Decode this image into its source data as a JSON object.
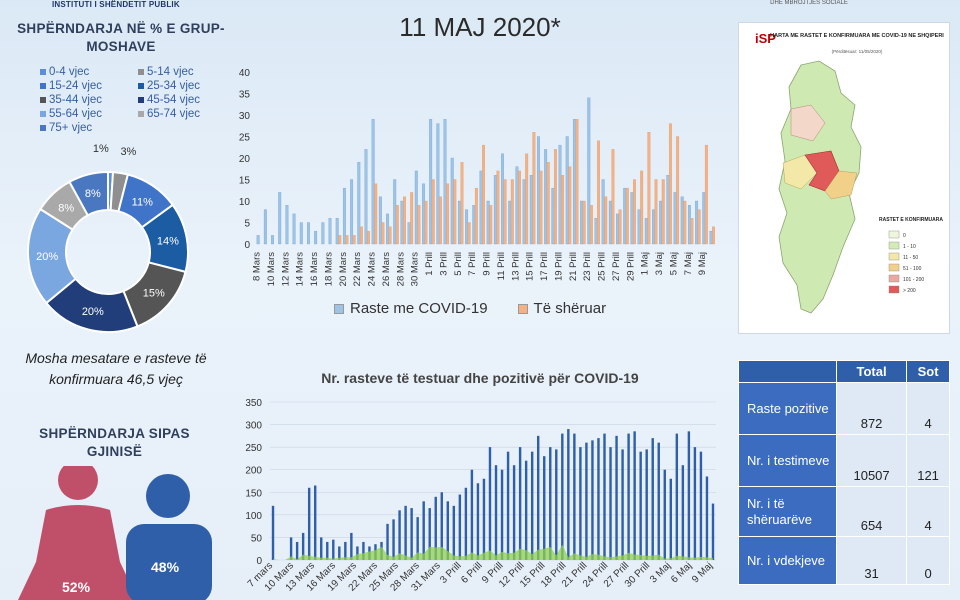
{
  "header": {
    "org": "INSTITUTI I SHËNDETIT PUBLIK",
    "ministry": "DHE MBROJTJES SOCIALE",
    "date_title": "11 MAJ 2020*"
  },
  "chart_data": [
    {
      "type": "pie",
      "title": "SHPËRNDARJA NË % E GRUP-MOSHAVE",
      "legend_position": "top",
      "categories": [
        "0-4 vjec",
        "5-14 vjec",
        "15-24 vjec",
        "25-34 vjec",
        "35-44 vjec",
        "45-54 vjec",
        "55-64 vjec",
        "65-74 vjec",
        "75+ vjec"
      ],
      "values": [
        1,
        3,
        11,
        14,
        15,
        20,
        20,
        8,
        8
      ],
      "labels": [
        "1%",
        "3%",
        "11%",
        "14%",
        "15%",
        "20%",
        "20%",
        "8%",
        "8%"
      ],
      "colors": [
        "#5b8fd6",
        "#8f8f8f",
        "#3f74c9",
        "#1c5ca3",
        "#555555",
        "#213e7a",
        "#7aa7e0",
        "#a9a9a9",
        "#4a78c0"
      ]
    },
    {
      "type": "bar",
      "title": "",
      "categories": [
        "8 Mars",
        "9 Mars",
        "10 Mars",
        "11 Mars",
        "12 Mars",
        "13 Mars",
        "14 Mars",
        "15 Mars",
        "16 Mars",
        "17 Mars",
        "18 Mars",
        "19 Mars",
        "20 Mars",
        "21 Mars",
        "22 Mars",
        "23 Mars",
        "24 Mars",
        "25 Mars",
        "26 Mars",
        "27 Mars",
        "28 Mars",
        "29 Mars",
        "30 Mars",
        "31 Mars",
        "1 Prill",
        "2 Prill",
        "3 Prill",
        "4 Prill",
        "5 Prill",
        "6 Prill",
        "7 Prill",
        "8 Prill",
        "9 Prill",
        "10 Prill",
        "11 Prill",
        "12 Prill",
        "13 Prill",
        "14 Prill",
        "15 Prill",
        "16 Prill",
        "17 Prill",
        "18 Prill",
        "19 Prill",
        "20 Prill",
        "21 Prill",
        "22 Prill",
        "23 Prill",
        "24 Prill",
        "25 Prill",
        "26 Prill",
        "27 Prill",
        "28 Prill",
        "29 Prill",
        "30 Prill",
        "1 Maj",
        "2 Maj",
        "3 Maj",
        "4 Maj",
        "5 Maj",
        "6 Maj",
        "7 Maj",
        "8 Maj",
        "9 Maj",
        "10 Maj"
      ],
      "x_tick_labels": [
        "8 Mars",
        "10 Mars",
        "12 Mars",
        "14 Mars",
        "16 Mars",
        "18 Mars",
        "20 Mars",
        "22 Mars",
        "24 Mars",
        "26 Mars",
        "28 Mars",
        "30 Mars",
        "1 Prill",
        "3 Prill",
        "5 Prill",
        "7 Prill",
        "9 Prill",
        "11 Prill",
        "13 Prill",
        "15 Prill",
        "17 Prill",
        "19 Prill",
        "21 Prill",
        "23 Prill",
        "25 Prill",
        "27 Prill",
        "29 Prill",
        "1 Maj",
        "3 Maj",
        "5 Maj",
        "7 Maj",
        "9 Maj"
      ],
      "ylim": [
        0,
        40
      ],
      "yticks": [
        0,
        5,
        10,
        15,
        20,
        25,
        30,
        35,
        40
      ],
      "legend_position": "bottom",
      "series": [
        {
          "name": "Raste me COVID-19",
          "color": "#9dc3e6",
          "values": [
            2,
            8,
            2,
            12,
            9,
            7,
            5,
            5,
            3,
            5,
            6,
            6,
            13,
            15,
            19,
            22,
            29,
            11,
            7,
            15,
            10,
            5,
            17,
            14,
            29,
            28,
            29,
            20,
            10,
            8,
            9,
            17,
            10,
            16,
            21,
            10,
            18,
            15,
            16,
            25,
            22,
            13,
            23,
            25,
            29,
            10,
            34,
            6,
            15,
            10,
            7,
            13,
            12,
            8,
            6,
            8,
            10,
            16,
            12,
            11,
            9,
            10,
            12,
            3
          ]
        },
        {
          "name": "Të shëruar",
          "color": "#f4b183",
          "values": [
            0,
            0,
            0,
            0,
            0,
            0,
            0,
            0,
            0,
            0,
            0,
            2,
            2,
            2,
            4,
            3,
            14,
            5,
            4,
            9,
            11,
            12,
            9,
            10,
            15,
            11,
            14,
            15,
            19,
            5,
            13,
            23,
            9,
            17,
            15,
            15,
            17,
            21,
            26,
            17,
            19,
            22,
            16,
            18,
            29,
            10,
            9,
            24,
            11,
            22,
            8,
            13,
            15,
            17,
            26,
            15,
            15,
            28,
            25,
            10,
            6,
            8,
            23,
            4
          ]
        }
      ]
    },
    {
      "type": "bar",
      "title": "Nr. rasteve të testuar dhe pozitivë për COVID-19",
      "x_tick_labels": [
        "7 mars",
        "10 Mars",
        "13 Mars",
        "16 Mars",
        "19 Mars",
        "22 Mars",
        "25 Mars",
        "28 Mars",
        "31 Mars",
        "3 Prill",
        "6 Prill",
        "9 Prill",
        "12 Prill",
        "15 Prill",
        "18 Prill",
        "21 Prill",
        "24 Prill",
        "27 Prill",
        "30 Prill",
        "3 Maj",
        "6 Maj",
        "9 Maj"
      ],
      "ylim": [
        0,
        350
      ],
      "yticks": [
        0,
        50,
        100,
        150,
        200,
        250,
        300,
        350
      ],
      "series": [
        {
          "name": "",
          "color": "#2e5fa8",
          "values": [
            120,
            0,
            0,
            50,
            40,
            60,
            160,
            165,
            50,
            40,
            45,
            30,
            40,
            60,
            30,
            40,
            30,
            35,
            40,
            80,
            90,
            110,
            120,
            115,
            95,
            130,
            115,
            140,
            150,
            130,
            120,
            145,
            160,
            200,
            170,
            180,
            250,
            210,
            200,
            240,
            210,
            250,
            220,
            240,
            275,
            230,
            250,
            245,
            280,
            290,
            280,
            250,
            260,
            265,
            270,
            280,
            250,
            275,
            245,
            280,
            285,
            240,
            245,
            270,
            260,
            200,
            180,
            280,
            210,
            285,
            250,
            240,
            185,
            125
          ]
        },
        {
          "name": "",
          "color": "#92d050",
          "values": [
            2,
            0,
            0,
            8,
            2,
            12,
            9,
            7,
            5,
            5,
            3,
            5,
            6,
            6,
            13,
            15,
            19,
            22,
            29,
            11,
            7,
            15,
            10,
            5,
            17,
            14,
            29,
            28,
            29,
            20,
            10,
            8,
            9,
            17,
            10,
            16,
            21,
            10,
            18,
            15,
            16,
            25,
            22,
            13,
            23,
            25,
            29,
            10,
            34,
            6,
            15,
            10,
            7,
            13,
            12,
            8,
            6,
            8,
            10,
            16,
            12,
            11,
            9,
            10,
            12,
            3,
            4,
            9,
            8,
            6,
            5,
            7,
            6,
            4
          ]
        }
      ]
    },
    {
      "type": "table",
      "columns": [
        "",
        "Total",
        "Sot"
      ],
      "rows": [
        {
          "label": "Raste pozitive",
          "total": "872",
          "sot": "4"
        },
        {
          "label": "Nr. i testimeve",
          "total": "10507",
          "sot": "121"
        },
        {
          "label": "Nr. i të shëruarëve",
          "total": "654",
          "sot": "4"
        },
        {
          "label": "Nr. i vdekjeve",
          "total": "31",
          "sot": "0"
        }
      ]
    }
  ],
  "mean_age": "Mosha mesatare e rasteve të konfirmuara 46,5 vjeç",
  "gender": {
    "title": "SHPËRNDARJA SIPAS GJINISË",
    "female_label": "52%",
    "male_label": "48%",
    "female_color": "#c0506a",
    "male_color": "#2e5fa8"
  },
  "map": {
    "title": "HARTA ME RASTET E KONFIRMUARA ME COVID-19 NE SHQIPERI",
    "subtitle": "(Përditësuar: 11/05/2020)",
    "legend_title": "RASTET E KONFIRMUARA",
    "legend_items": [
      "0",
      "1 - 10",
      "11 - 50",
      "51 - 100",
      "101 - 200",
      "> 200"
    ],
    "legend_colors": [
      "#eef6de",
      "#d3ebb5",
      "#f3e8a8",
      "#f1d08a",
      "#e9a9a0",
      "#e05a5a"
    ],
    "logo_text": "iSP"
  }
}
